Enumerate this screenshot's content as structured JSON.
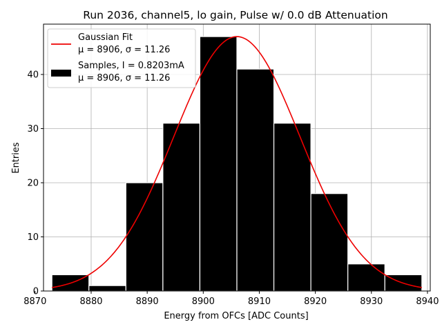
{
  "chart_data": {
    "type": "bar",
    "title": "Run 2036, channel5, lo gain, Pulse w/ 0.0 dB Attenuation",
    "xlabel": "Energy from OFCs [ADC Counts]",
    "ylabel": "Entries",
    "xlim": [
      8871.5,
      8940.5
    ],
    "ylim": [
      0,
      49.3
    ],
    "xticks": [
      8870,
      8880,
      8890,
      8900,
      8910,
      8920,
      8930,
      8940
    ],
    "yticks": [
      0,
      10,
      20,
      30,
      40
    ],
    "grid": true,
    "legend_position": "top-left",
    "bin_edges": [
      8873,
      8879.6,
      8886.2,
      8892.8,
      8899.4,
      8906.0,
      8912.6,
      8919.2,
      8925.8,
      8932.4,
      8939.0
    ],
    "counts": [
      3,
      1,
      20,
      31,
      47,
      41,
      31,
      18,
      5,
      3
    ],
    "histogram_color": "#000000",
    "histogram_edge_color": "#ffffff",
    "fit": {
      "mu": 8906,
      "sigma": 11.26,
      "amplitude": 47,
      "color": "#ee0000"
    },
    "legend": [
      {
        "type": "line",
        "line1": "Gaussian Fit",
        "line2": "μ = 8906, σ = 11.26"
      },
      {
        "type": "patch",
        "line1": "Samples, I = 0.8203mA",
        "line2": "μ = 8906, σ = 11.26"
      }
    ]
  }
}
